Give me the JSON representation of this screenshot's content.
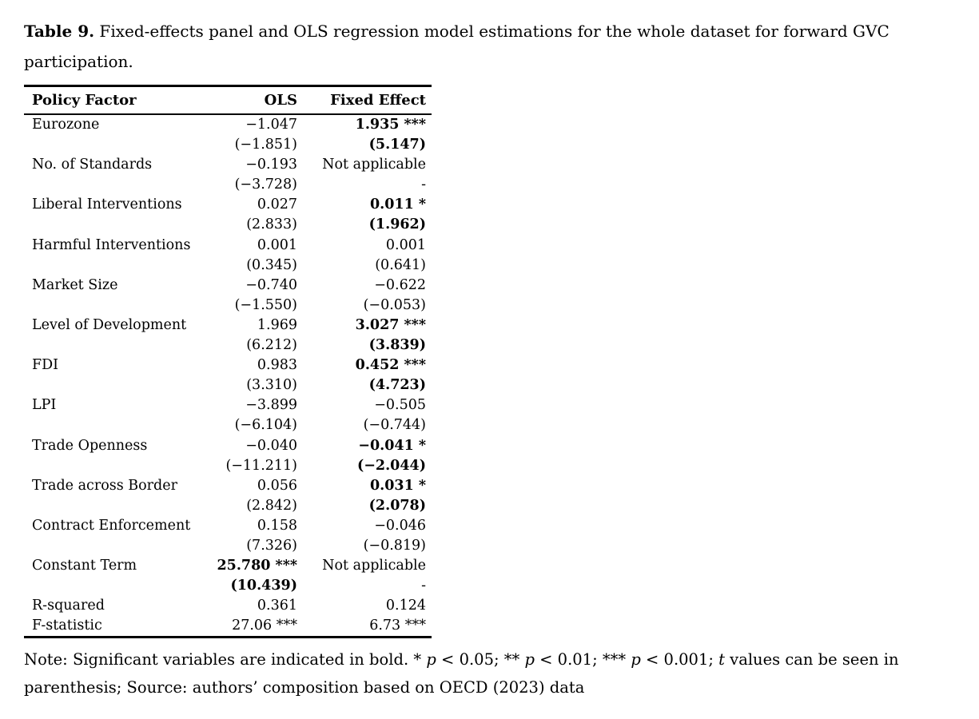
{
  "colors": {
    "text": "#000000",
    "background": "#ffffff",
    "table_rule": "#000000"
  },
  "caption": {
    "label": "Table 9.",
    "text": " Fixed-effects panel and OLS regression model estimations for the whole dataset for forward GVC participation."
  },
  "table": {
    "columns": [
      "Policy Factor",
      "OLS",
      "Fixed Effect"
    ],
    "rows": [
      {
        "factor": "Eurozone",
        "ols": "−1.047",
        "ols_t": "(−1.851)",
        "ols_bold": false,
        "fe": "1.935 ***",
        "fe_t": "(5.147)",
        "fe_bold": true
      },
      {
        "factor": "No. of Standards",
        "ols": "−0.193",
        "ols_t": "(−3.728)",
        "ols_bold": false,
        "fe": "Not applicable",
        "fe_t": "-",
        "fe_bold": false
      },
      {
        "factor": "Liberal Interventions",
        "ols": "0.027",
        "ols_t": "(2.833)",
        "ols_bold": false,
        "fe": "0.011 *",
        "fe_t": "(1.962)",
        "fe_bold": true
      },
      {
        "factor": "Harmful Interventions",
        "ols": "0.001",
        "ols_t": "(0.345)",
        "ols_bold": false,
        "fe": "0.001",
        "fe_t": "(0.641)",
        "fe_bold": false
      },
      {
        "factor": "Market Size",
        "ols": "−0.740",
        "ols_t": "(−1.550)",
        "ols_bold": false,
        "fe": "−0.622",
        "fe_t": "(−0.053)",
        "fe_bold": false
      },
      {
        "factor": "Level of Development",
        "ols": "1.969",
        "ols_t": "(6.212)",
        "ols_bold": false,
        "fe": "3.027 ***",
        "fe_t": "(3.839)",
        "fe_bold": true
      },
      {
        "factor": "FDI",
        "ols": "0.983",
        "ols_t": "(3.310)",
        "ols_bold": false,
        "fe": "0.452 ***",
        "fe_t": "(4.723)",
        "fe_bold": true
      },
      {
        "factor": "LPI",
        "ols": "−3.899",
        "ols_t": "(−6.104)",
        "ols_bold": false,
        "fe": "−0.505",
        "fe_t": "(−0.744)",
        "fe_bold": false
      },
      {
        "factor": "Trade Openness",
        "ols": "−0.040",
        "ols_t": "(−11.211)",
        "ols_bold": false,
        "fe": "−0.041 *",
        "fe_t": "(−2.044)",
        "fe_bold": true
      },
      {
        "factor": "Trade across Border",
        "ols": "0.056",
        "ols_t": "(2.842)",
        "ols_bold": false,
        "fe": "0.031 *",
        "fe_t": "(2.078)",
        "fe_bold": true
      },
      {
        "factor": "Contract Enforcement",
        "ols": "0.158",
        "ols_t": "(7.326)",
        "ols_bold": false,
        "fe": "−0.046",
        "fe_t": "(−0.819)",
        "fe_bold": false
      },
      {
        "factor": "Constant Term",
        "ols": "25.780 ***",
        "ols_t": "(10.439)",
        "ols_bold": true,
        "fe": "Not applicable",
        "fe_t": "-",
        "fe_bold": false
      },
      {
        "factor": "R-squared",
        "ols": "0.361",
        "ols_bold": false,
        "fe": "0.124",
        "fe_bold": false,
        "single": true
      },
      {
        "factor": "F-statistic",
        "ols": "27.06 ***",
        "ols_bold": false,
        "fe": "6.73 ***",
        "fe_bold": false,
        "single": true
      }
    ]
  },
  "note": {
    "lines": [
      [
        {
          "text": "Note: Significant variables are indicated in bold. * "
        },
        {
          "text": "p",
          "italic": true
        },
        {
          "text": " < 0.05; ** "
        },
        {
          "text": "p",
          "italic": true
        },
        {
          "text": " < 0.01; *** "
        },
        {
          "text": "p",
          "italic": true
        },
        {
          "text": " < 0.001; "
        },
        {
          "text": "t",
          "italic": true
        },
        {
          "text": " values can be seen in"
        }
      ],
      [
        {
          "text": "parenthesis; Source: authors’ composition based on OECD (2023) data"
        }
      ]
    ]
  }
}
